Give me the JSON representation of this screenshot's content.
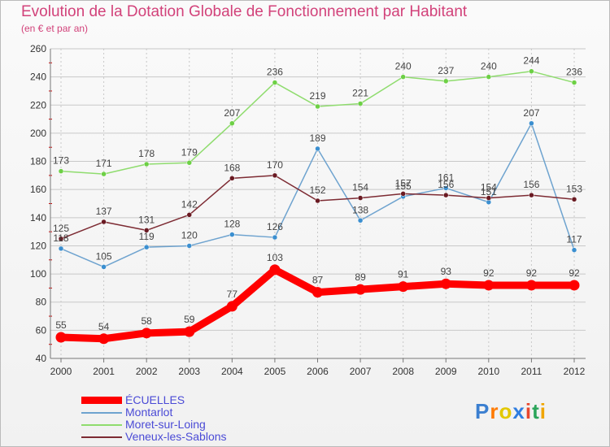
{
  "header": {
    "title": "Evolution de la Dotation Globale de Fonctionnement par Habitant",
    "subtitle": "(en € et par an)"
  },
  "logo": {
    "text": "Proxiti",
    "letters": [
      "P",
      "r",
      "o",
      "x",
      "i",
      "t",
      "i"
    ]
  },
  "colors": {
    "title": "#d2427a",
    "grid": "#c8c8c8",
    "axis": "#777777",
    "tick": "#cc0000"
  },
  "chart_data": {
    "type": "line",
    "title": "Evolution de la Dotation Globale de Fonctionnement par Habitant",
    "subtitle": "(en € et par an)",
    "xlabel": "",
    "ylabel": "",
    "ylim": [
      40,
      260
    ],
    "yticks": [
      40,
      60,
      80,
      100,
      120,
      140,
      160,
      180,
      200,
      220,
      240,
      260
    ],
    "categories": [
      "2000",
      "2001",
      "2002",
      "2003",
      "2004",
      "2005",
      "2006",
      "2007",
      "2008",
      "2009",
      "2010",
      "2011",
      "2012"
    ],
    "grid": true,
    "legend_position": "bottom-left",
    "series": [
      {
        "name": "ÉCUELLES",
        "color": "#ff0000",
        "marker": "#ff0000",
        "label_color": "#444444",
        "bold": true,
        "values": [
          55,
          54,
          58,
          59,
          77,
          103,
          87,
          89,
          91,
          93,
          92,
          92,
          92
        ]
      },
      {
        "name": "Montarlot",
        "color": "#6ea3cf",
        "marker": "#3b8fd0",
        "label_color": "#333333",
        "bold": false,
        "values": [
          118,
          105,
          119,
          120,
          128,
          126,
          189,
          138,
          155,
          161,
          151,
          207,
          117
        ]
      },
      {
        "name": "Moret-sur-Loing",
        "color": "#8fdc6e",
        "marker": "#6dd045",
        "label_color": "#444444",
        "bold": false,
        "values": [
          173,
          171,
          178,
          179,
          207,
          236,
          219,
          221,
          240,
          237,
          240,
          244,
          236
        ]
      },
      {
        "name": "Veneux-les-Sablons",
        "color": "#7d2b33",
        "marker": "#6a1a22",
        "label_color": "#444444",
        "bold": false,
        "values": [
          125,
          137,
          131,
          142,
          168,
          170,
          152,
          154,
          157,
          156,
          154,
          156,
          153
        ]
      }
    ]
  }
}
